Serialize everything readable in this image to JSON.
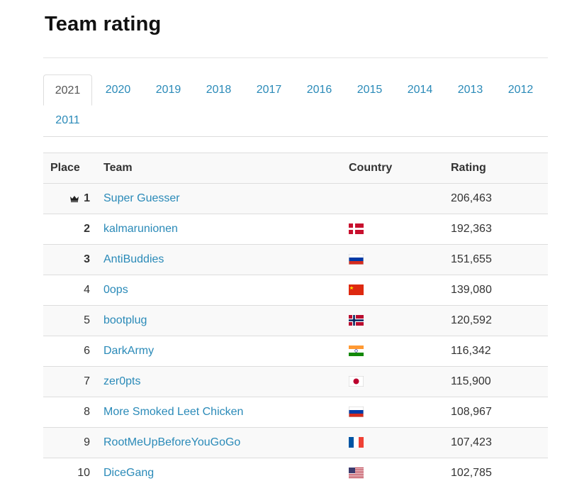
{
  "page": {
    "title": "Team rating"
  },
  "tabs": [
    "2021",
    "2020",
    "2019",
    "2018",
    "2017",
    "2016",
    "2015",
    "2014",
    "2013",
    "2012",
    "2011"
  ],
  "active_tab": "2021",
  "table": {
    "headers": {
      "place": "Place",
      "team": "Team",
      "country": "Country",
      "rating": "Rating"
    },
    "rows": [
      {
        "place": "1",
        "team": "Super Guesser",
        "country": "",
        "rating": "206,463",
        "crown": true
      },
      {
        "place": "2",
        "team": "kalmarunionen",
        "country": "dk",
        "rating": "192,363"
      },
      {
        "place": "3",
        "team": "AntiBuddies",
        "country": "ru",
        "rating": "151,655"
      },
      {
        "place": "4",
        "team": "0ops",
        "country": "cn",
        "rating": "139,080"
      },
      {
        "place": "5",
        "team": "bootplug",
        "country": "no",
        "rating": "120,592"
      },
      {
        "place": "6",
        "team": "DarkArmy",
        "country": "in",
        "rating": "116,342"
      },
      {
        "place": "7",
        "team": "zer0pts",
        "country": "jp",
        "rating": "115,900"
      },
      {
        "place": "8",
        "team": "More Smoked Leet Chicken",
        "country": "ru",
        "rating": "108,967"
      },
      {
        "place": "9",
        "team": "RootMeUpBeforeYouGoGo",
        "country": "fr",
        "rating": "107,423"
      },
      {
        "place": "10",
        "team": "DiceGang",
        "country": "us",
        "rating": "102,785"
      }
    ]
  },
  "colors": {
    "link": "#2a8ab8",
    "border": "#dddddd",
    "stripe": "#f9f9f9"
  }
}
